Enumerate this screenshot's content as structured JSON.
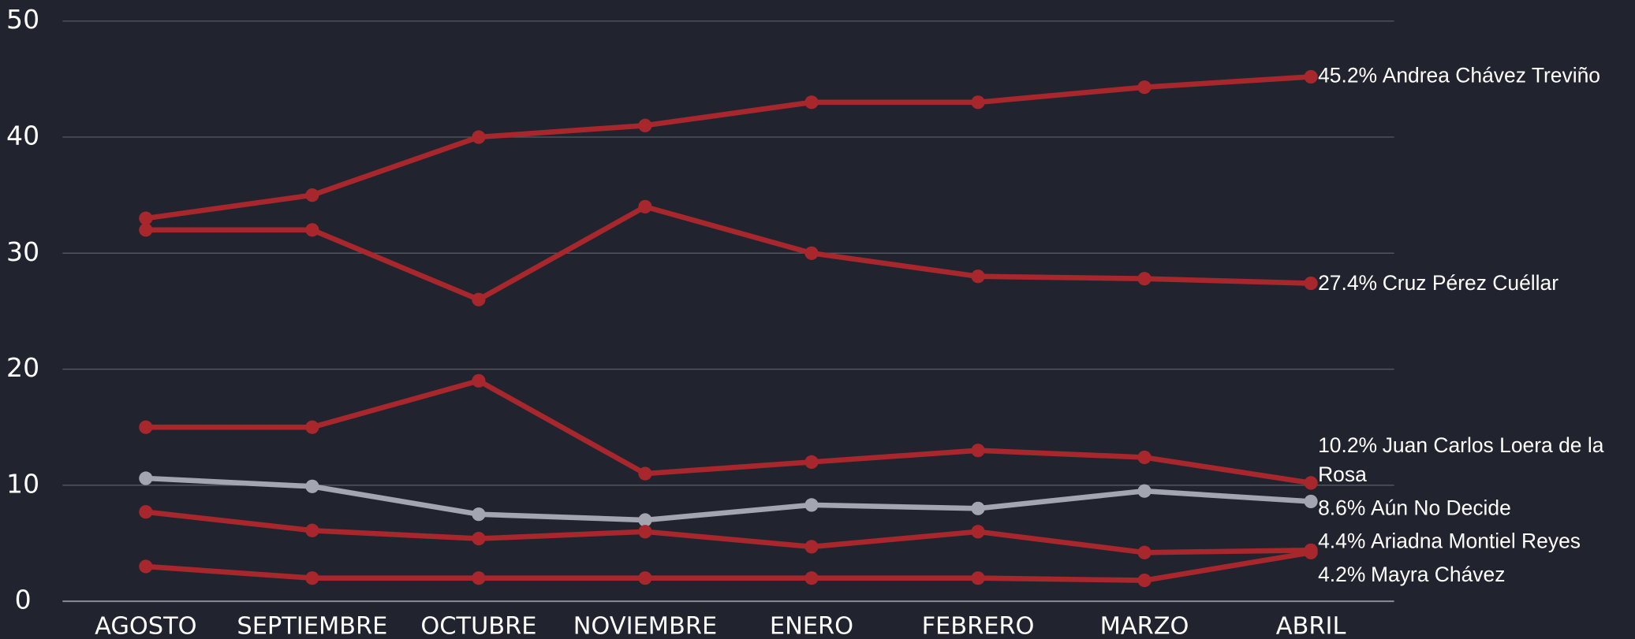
{
  "chart_data": {
    "type": "line",
    "categories": [
      "AGOSTO",
      "SEPTIEMBRE",
      "OCTUBRE",
      "NOVIEMBRE",
      "ENERO",
      "FEBRERO",
      "MARZO",
      "ABRIL"
    ],
    "ylim": [
      0,
      50
    ],
    "yticks": [
      0,
      10,
      20,
      30,
      40,
      50
    ],
    "grid": true,
    "series": [
      {
        "name": "Andrea Chávez Treviño",
        "color": "#a8272d",
        "values": [
          33,
          35,
          40,
          41,
          43,
          43,
          44.3,
          45.2
        ],
        "value_labels": [
          null,
          null,
          null,
          null,
          null,
          null,
          null,
          "45.2%"
        ]
      },
      {
        "name": "Cruz Pérez Cuéllar",
        "color": "#a8272d",
        "values": [
          32,
          32,
          26,
          34,
          30,
          28,
          27.8,
          27.4
        ],
        "value_labels": [
          null,
          null,
          null,
          null,
          null,
          null,
          null,
          "27.4%"
        ]
      },
      {
        "name": "Juan Carlos Loera de la Rosa",
        "color": "#a8272d",
        "values": [
          15,
          15,
          19,
          11,
          12,
          13,
          12.4,
          10.2
        ],
        "value_labels": [
          null,
          null,
          null,
          null,
          null,
          null,
          null,
          "10.2%"
        ]
      },
      {
        "name": "Aún No Decide",
        "color": "#a3a6b0",
        "values": [
          10.6,
          9.9,
          7.5,
          7.0,
          8.3,
          8.0,
          9.5,
          8.6
        ],
        "value_labels": [
          null,
          null,
          null,
          null,
          null,
          null,
          null,
          "8.6%"
        ]
      },
      {
        "name": "Ariadna Montiel Reyes",
        "color": "#a8272d",
        "values": [
          7.7,
          6.1,
          5.4,
          6.0,
          4.7,
          6.0,
          4.2,
          4.4
        ],
        "value_labels": [
          null,
          null,
          null,
          null,
          null,
          null,
          null,
          "4.4%"
        ]
      },
      {
        "name": "Mayra Chávez",
        "color": "#a8272d",
        "values": [
          3.0,
          2.0,
          2.0,
          2.0,
          2.0,
          2.0,
          1.8,
          4.2
        ],
        "value_labels": [
          null,
          null,
          null,
          null,
          null,
          null,
          null,
          "4.2%"
        ]
      }
    ]
  }
}
